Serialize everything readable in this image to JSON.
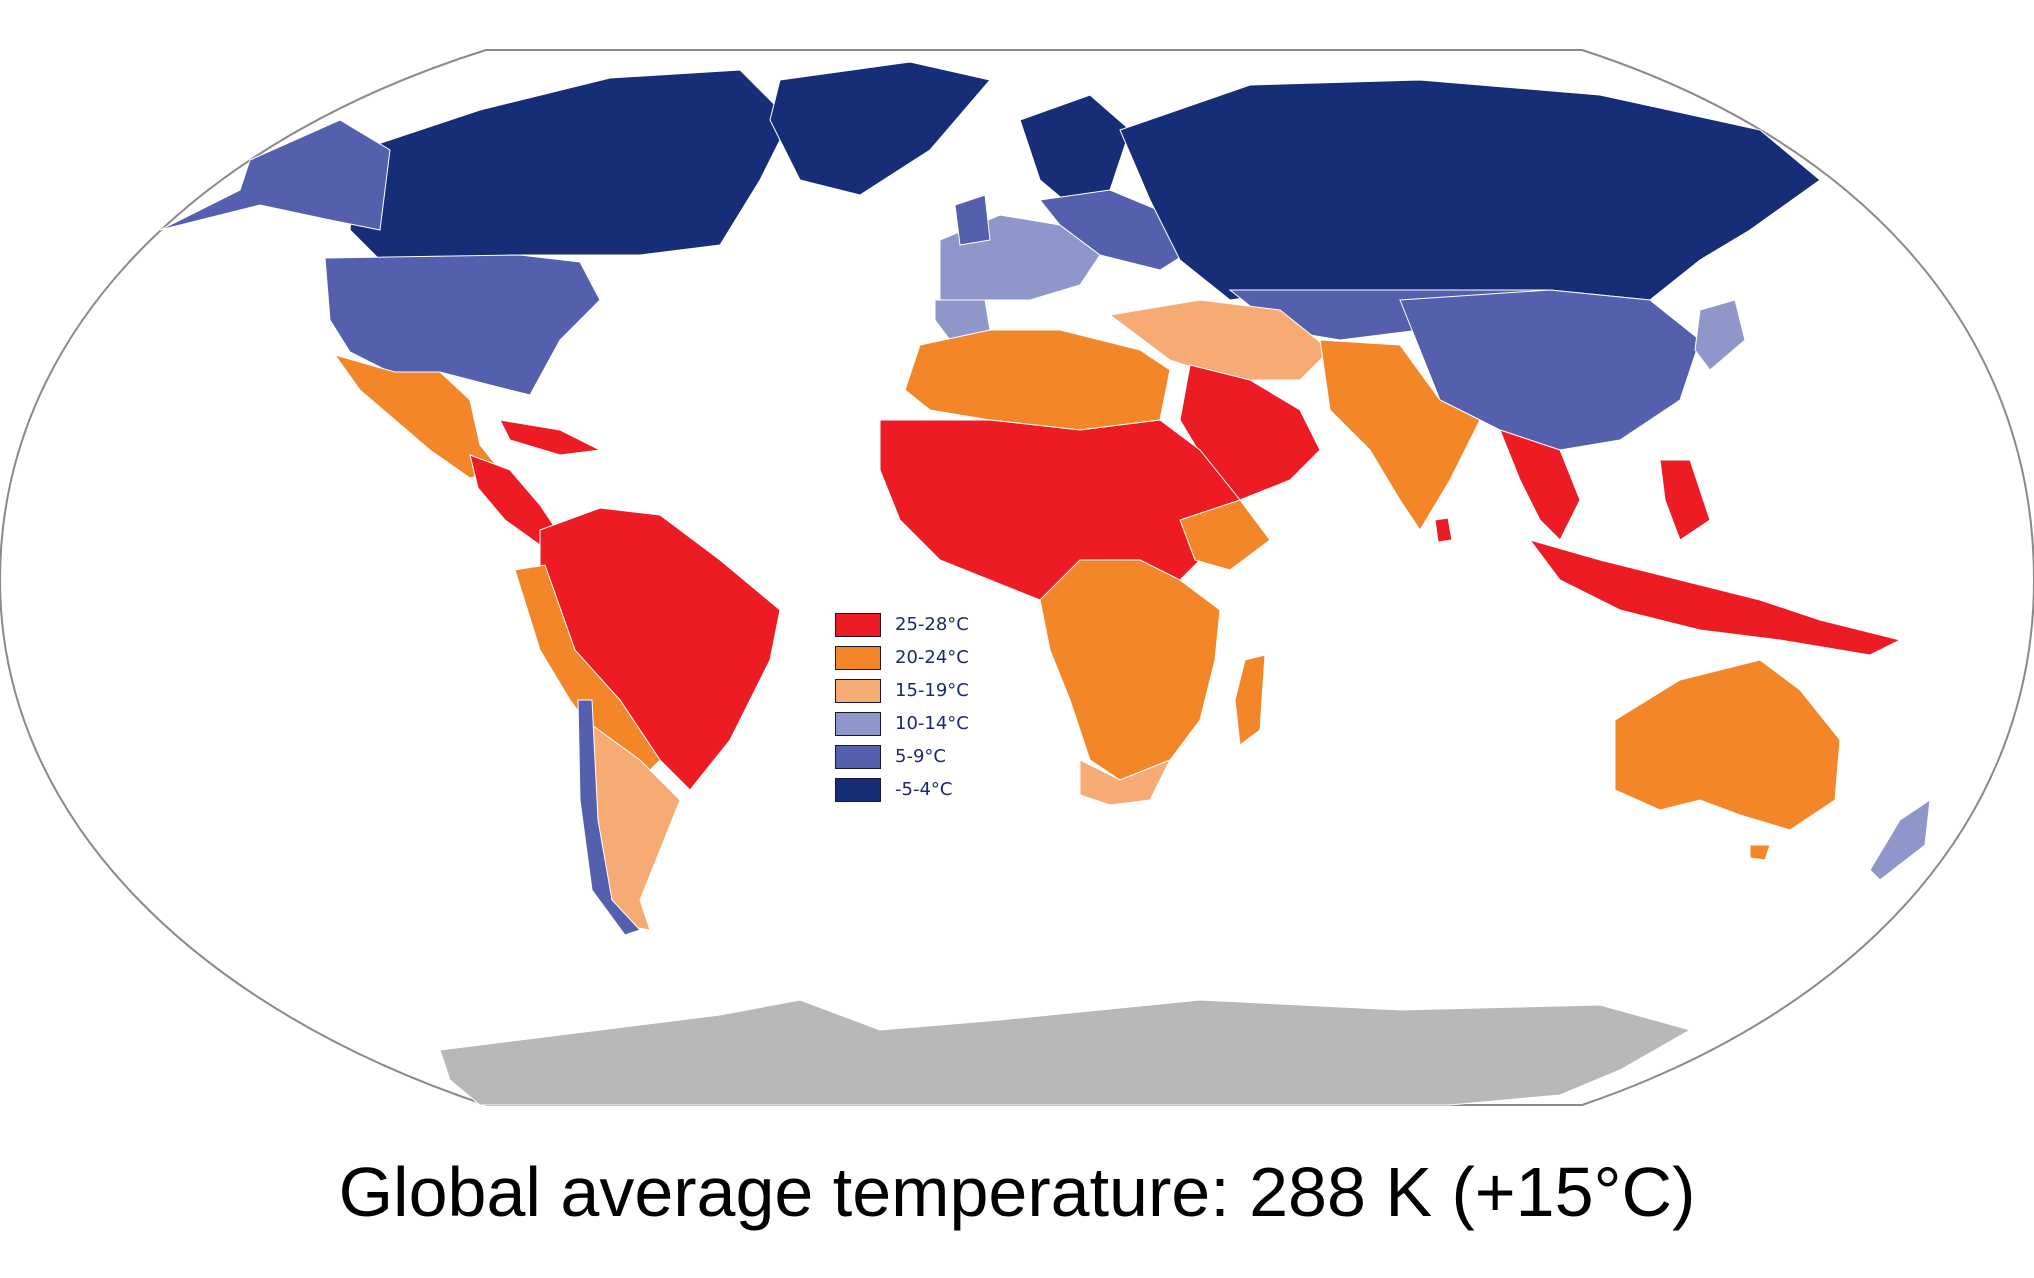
{
  "caption": "Global average temperature: 288 K (+15°C)",
  "legend": [
    {
      "label": "25-28°C",
      "color": "#ed1c24"
    },
    {
      "label": "20-24°C",
      "color": "#f4862a"
    },
    {
      "label": "15-19°C",
      "color": "#f6aa74"
    },
    {
      "label": "10-14°C",
      "color": "#8e96ca"
    },
    {
      "label": "5-9°C",
      "color": "#5460ad"
    },
    {
      "label": "-5-4°C",
      "color": "#162d78"
    }
  ],
  "colors": {
    "hot": "#ed1c24",
    "warm": "#f4862a",
    "mild": "#f6aa74",
    "cool": "#8e96ca",
    "cold": "#5460ad",
    "frigid": "#162d78",
    "no_data": "#b8b8b8",
    "ocean": "#ffffff",
    "outline": "#8a8a8a"
  }
}
